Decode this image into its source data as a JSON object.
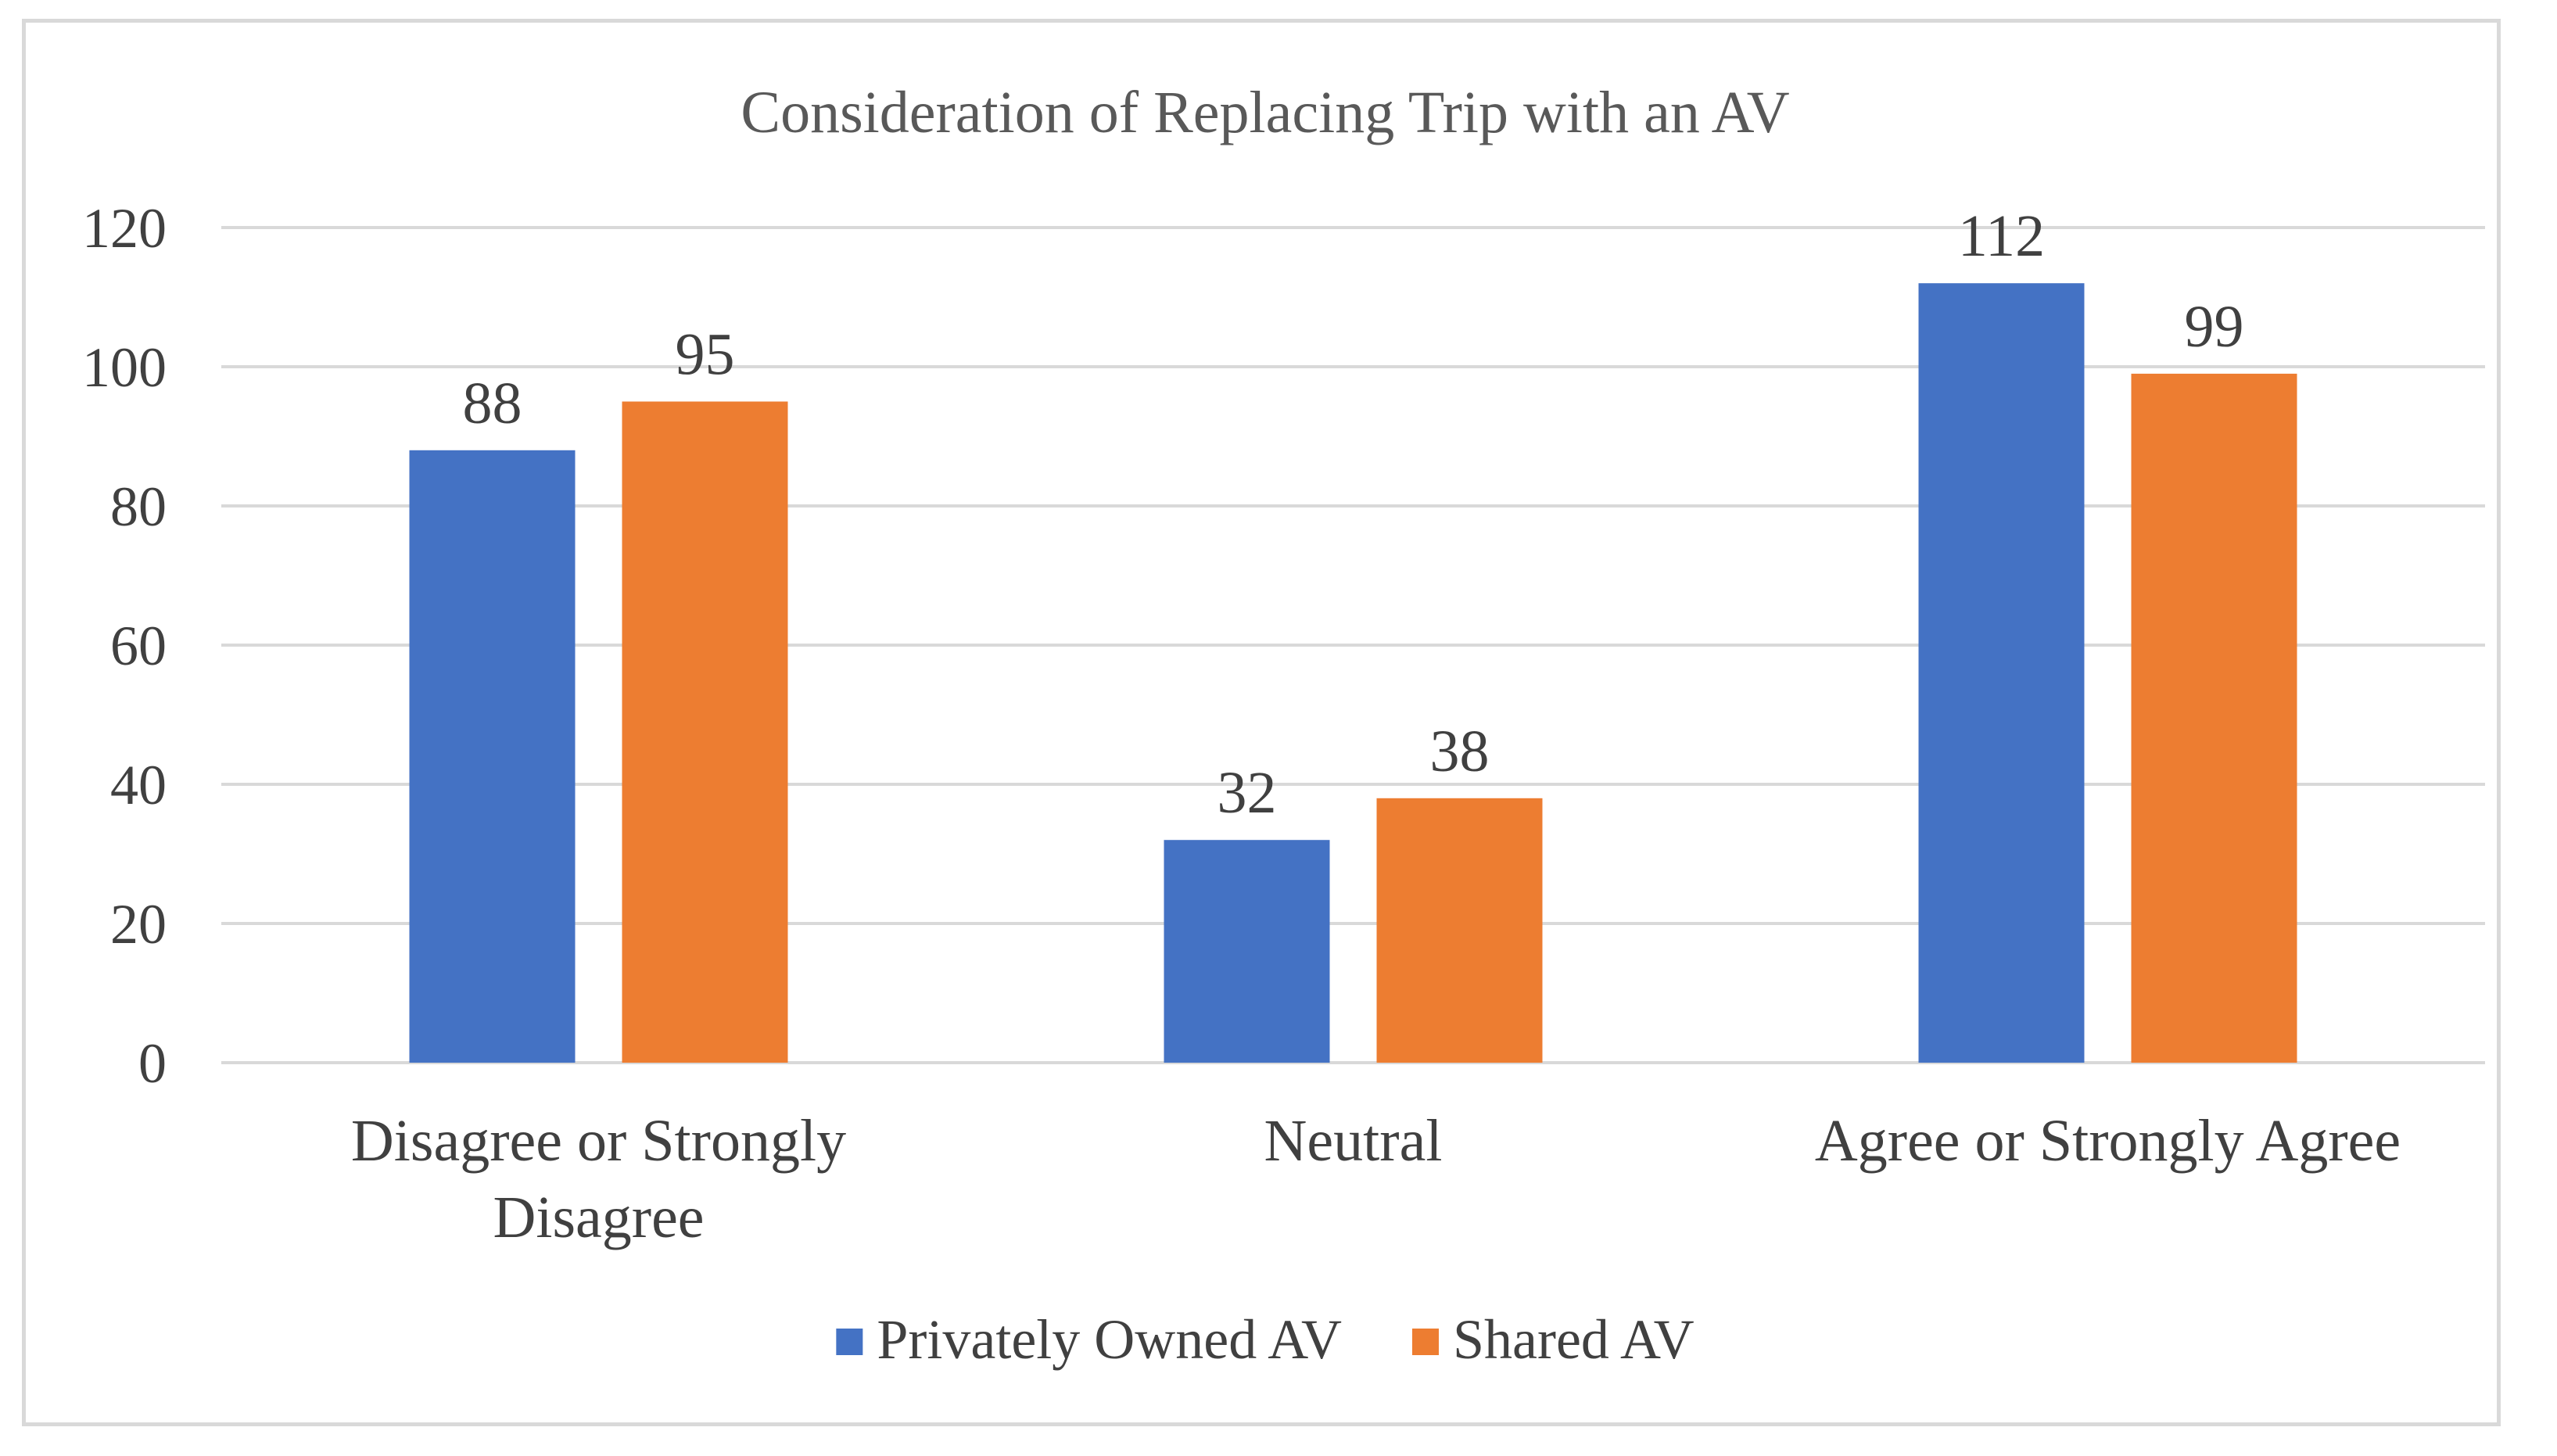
{
  "chart_data": {
    "type": "bar",
    "title": "Consideration of Replacing Trip with an AV",
    "categories": [
      [
        "Disagree or Strongly",
        "Disagree"
      ],
      [
        "Neutral"
      ],
      [
        "Agree or Strongly Agree"
      ]
    ],
    "series": [
      {
        "name": "Privately Owned AV",
        "color": "#4472c4",
        "values": [
          88,
          32,
          112
        ]
      },
      {
        "name": "Shared AV",
        "color": "#ed7d31",
        "values": [
          95,
          38,
          99
        ]
      }
    ],
    "yticks": [
      "0",
      "20",
      "40",
      "60",
      "80",
      "100",
      "120"
    ],
    "ylim": [
      0,
      120
    ],
    "grid": true,
    "legend_position": "bottom",
    "xlabel": "",
    "ylabel": ""
  }
}
